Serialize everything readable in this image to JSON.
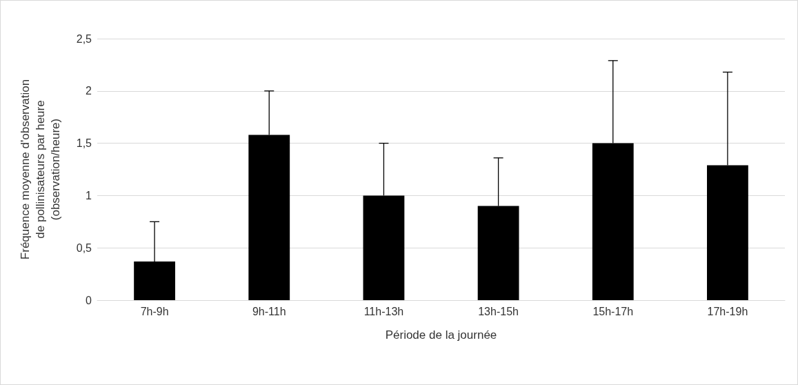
{
  "chart_data": {
    "type": "bar",
    "categories": [
      "7h-9h",
      "9h-11h",
      "11h-13h",
      "13h-15h",
      "15h-17h",
      "17h-19h"
    ],
    "values": [
      0.37,
      1.58,
      1.0,
      0.9,
      1.5,
      1.29
    ],
    "errors": [
      [
        0.37,
        0.75
      ],
      [
        1.58,
        2.0
      ],
      [
        1.0,
        1.5
      ],
      [
        0.9,
        1.36
      ],
      [
        1.5,
        2.29
      ],
      [
        1.29,
        2.18
      ]
    ],
    "color": "#000000",
    "xlabel": "Période de la journée",
    "ylabel": "Fréquence moyenne d'observation\nde pollinisateurs par heure\n(observation/heure)",
    "ylim": [
      0,
      2.5
    ],
    "yticks": [
      0,
      {
        "value": 0.5,
        "label": "0,5"
      },
      1,
      {
        "value": 1.5,
        "label": "1,5"
      },
      2,
      {
        "value": 2.5,
        "label": "2,5"
      }
    ],
    "grid": "y"
  }
}
